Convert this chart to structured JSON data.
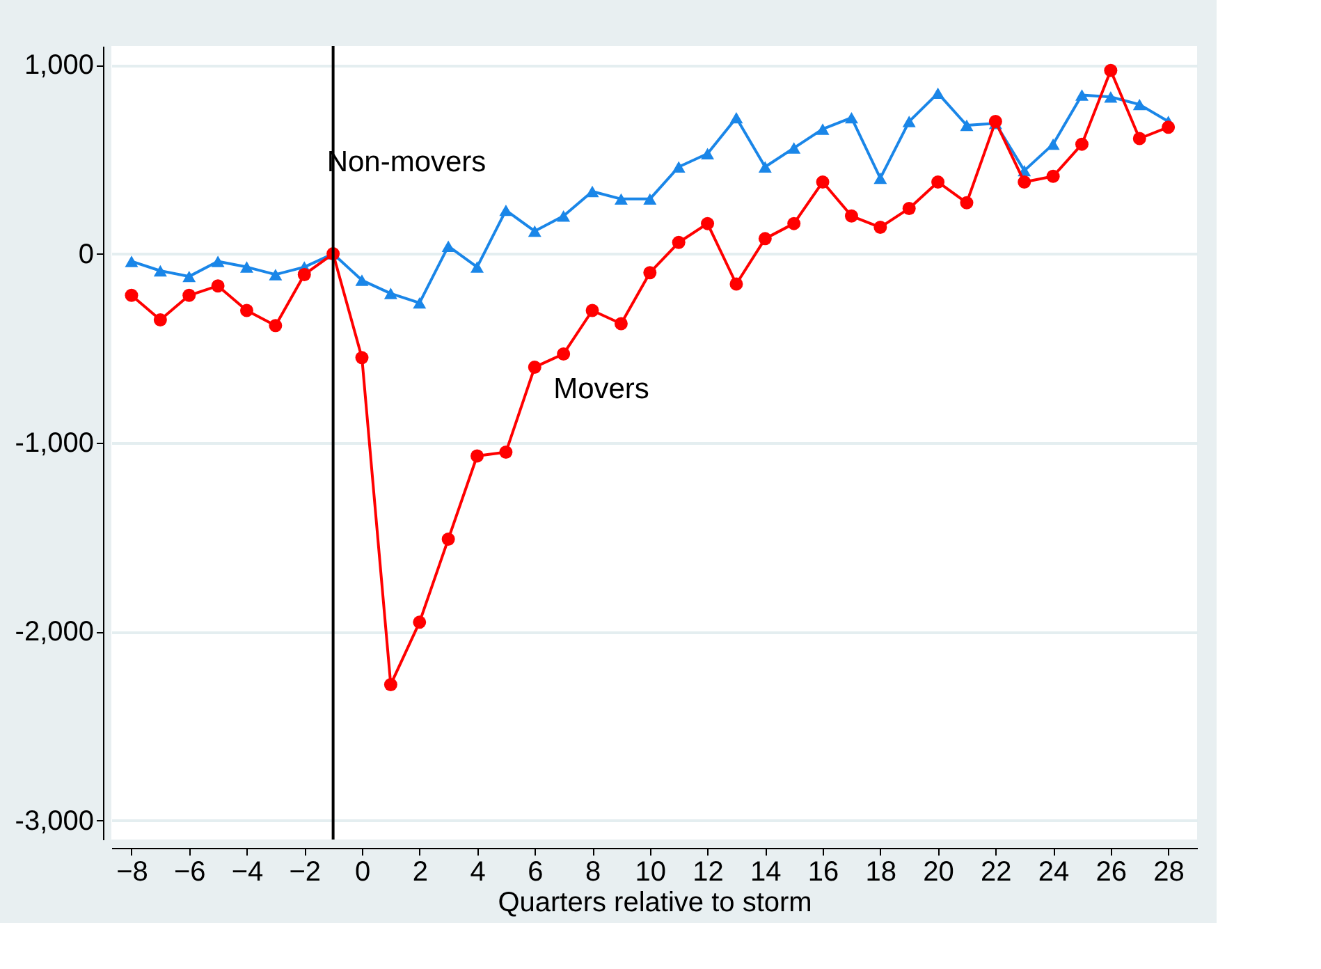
{
  "chart_data": {
    "type": "line",
    "xlabel": "Quarters relative to storm",
    "x": [
      -8,
      -7,
      -6,
      -5,
      -4,
      -3,
      -2,
      -1,
      0,
      1,
      2,
      3,
      4,
      5,
      6,
      7,
      8,
      9,
      10,
      11,
      12,
      13,
      14,
      15,
      16,
      17,
      18,
      19,
      20,
      21,
      22,
      23,
      24,
      25,
      26,
      27,
      28
    ],
    "series": [
      {
        "name": "Non-movers",
        "color": "#1a86e8",
        "marker": "triangle",
        "values": [
          -40,
          -90,
          -120,
          -40,
          -70,
          -110,
          -70,
          0,
          -140,
          -210,
          -260,
          40,
          -70,
          230,
          120,
          200,
          330,
          290,
          290,
          460,
          530,
          720,
          460,
          560,
          660,
          720,
          400,
          700,
          850,
          680,
          690,
          440,
          580,
          840,
          830,
          790,
          700
        ]
      },
      {
        "name": "Movers",
        "color": "#ff0000",
        "marker": "circle",
        "values": [
          -220,
          -350,
          -220,
          -170,
          -300,
          -380,
          -110,
          0,
          -550,
          -2280,
          -1950,
          -1510,
          -1070,
          -1050,
          -600,
          -530,
          -300,
          -370,
          -100,
          60,
          160,
          -160,
          80,
          160,
          380,
          200,
          140,
          240,
          380,
          270,
          700,
          380,
          410,
          580,
          970,
          610,
          670
        ]
      }
    ],
    "xlim": [
      -8.7,
      29
    ],
    "ylim": [
      -3100,
      1100
    ],
    "xticks": [
      -8,
      -6,
      -4,
      -2,
      0,
      2,
      4,
      6,
      8,
      10,
      12,
      14,
      16,
      18,
      20,
      22,
      24,
      26,
      28
    ],
    "yticks": [
      {
        "value": -3000,
        "label": "-3,000"
      },
      {
        "value": -2000,
        "label": "-2,000"
      },
      {
        "value": -1000,
        "label": "-1,000"
      },
      0,
      {
        "value": 1000,
        "label": "1,000"
      }
    ],
    "ref_lines": [
      {
        "axis": "x",
        "value": -1,
        "color": "#000000"
      }
    ],
    "grid": "y",
    "line_style": "solid"
  }
}
